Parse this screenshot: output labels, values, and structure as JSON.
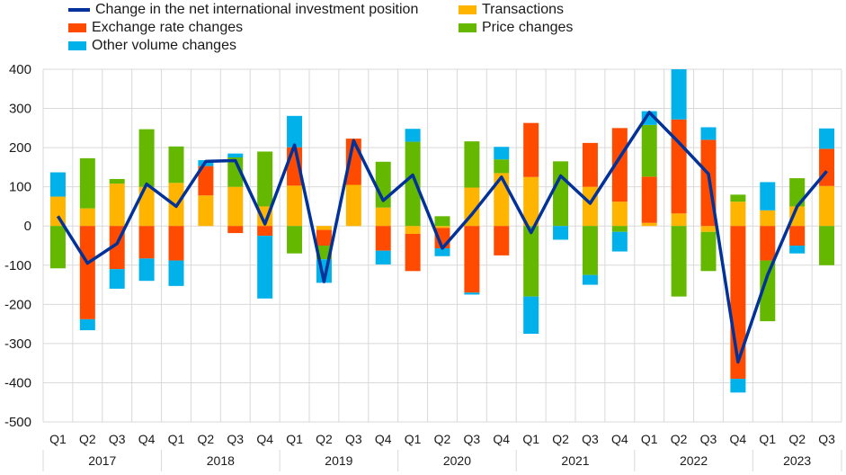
{
  "chart_data": {
    "type": "bar",
    "stacked": true,
    "ylim": [
      -500,
      400
    ],
    "yticks": [
      400,
      300,
      200,
      100,
      0,
      -100,
      -200,
      -300,
      -400,
      -500
    ],
    "grid": true,
    "legend_position": "top",
    "quarters": [
      "Q1",
      "Q2",
      "Q3",
      "Q4",
      "Q1",
      "Q2",
      "Q3",
      "Q4",
      "Q1",
      "Q2",
      "Q3",
      "Q4",
      "Q1",
      "Q2",
      "Q3",
      "Q4",
      "Q1",
      "Q2",
      "Q3",
      "Q4",
      "Q1",
      "Q2",
      "Q3",
      "Q4",
      "Q1",
      "Q2",
      "Q3"
    ],
    "years": [
      "2017",
      "2018",
      "2019",
      "2020",
      "2021",
      "2022",
      "2023"
    ],
    "series": [
      {
        "name": "Transactions",
        "kind": "bar",
        "color": "#ffb400",
        "values": [
          75,
          45,
          108,
          100,
          110,
          78,
          100,
          50,
          103,
          -10,
          105,
          47,
          -20,
          -5,
          98,
          135,
          125,
          0,
          100,
          62,
          8,
          32,
          -15,
          62,
          40,
          50,
          102
        ]
      },
      {
        "name": "Exchange rate changes",
        "kind": "bar",
        "color": "#ff4b00",
        "values": [
          0,
          -238,
          -110,
          -83,
          -88,
          75,
          -18,
          -25,
          98,
          -40,
          118,
          -63,
          -95,
          -52,
          -170,
          -75,
          138,
          0,
          112,
          188,
          118,
          240,
          220,
          -390,
          -88,
          -50,
          95
        ]
      },
      {
        "name": "Price changes",
        "kind": "bar",
        "color": "#65b800",
        "values": [
          -108,
          128,
          12,
          147,
          93,
          0,
          75,
          140,
          -70,
          -35,
          0,
          117,
          215,
          25,
          118,
          35,
          -180,
          165,
          -125,
          -15,
          132,
          -180,
          -100,
          18,
          -155,
          72,
          -100
        ]
      },
      {
        "name": "Other volume changes",
        "kind": "bar",
        "color": "#00b1ea",
        "values": [
          62,
          -28,
          -50,
          -57,
          -65,
          15,
          10,
          -160,
          80,
          -60,
          0,
          -35,
          33,
          -20,
          -5,
          32,
          -95,
          -35,
          -25,
          -50,
          35,
          128,
          32,
          -35,
          72,
          -20,
          52
        ]
      },
      {
        "name": "Change in the net international investment position",
        "kind": "line",
        "color": "#003299",
        "values": [
          25,
          -95,
          -45,
          107,
          50,
          165,
          167,
          5,
          207,
          -142,
          218,
          65,
          130,
          -57,
          30,
          125,
          -17,
          128,
          58,
          175,
          290,
          213,
          133,
          -347,
          -125,
          50,
          140
        ]
      }
    ]
  }
}
